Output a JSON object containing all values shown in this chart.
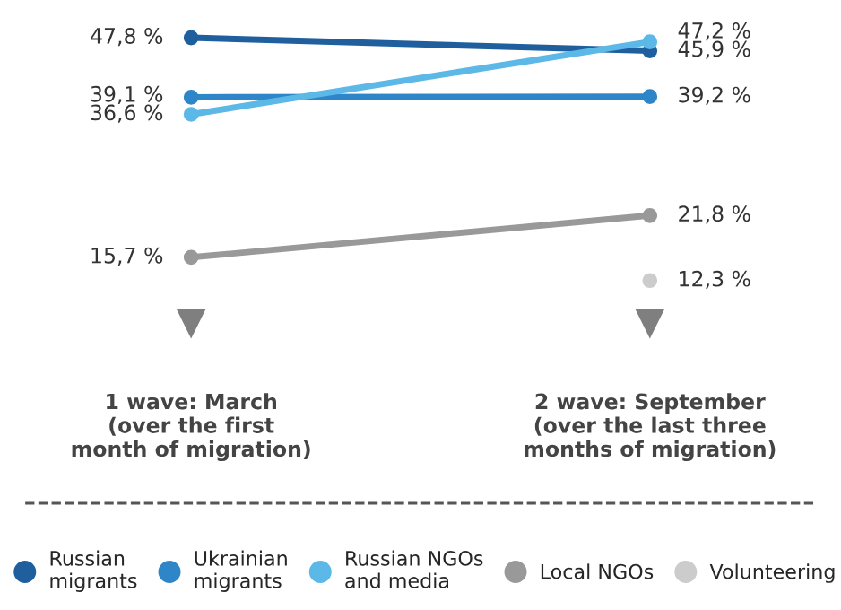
{
  "chart_data": {
    "type": "line",
    "categories": [
      "1 wave: March\n(over the first\nmonth of migration)",
      "2 wave: September\n(over the last three\nmonths of migration)"
    ],
    "series": [
      {
        "name": "Russian\nmigrants",
        "color": "#1f5f9e",
        "values": [
          47.8,
          45.9
        ],
        "value_labels": [
          "47,8 %",
          "45,9 %"
        ]
      },
      {
        "name": "Ukrainian\nmigrants",
        "color": "#2e86c8",
        "values": [
          39.1,
          39.2
        ],
        "value_labels": [
          "39,1 %",
          "39,2 %"
        ]
      },
      {
        "name": "Russian NGOs\nand media",
        "color": "#5cb8e6",
        "values": [
          36.6,
          47.2
        ],
        "value_labels": [
          "36,6 %",
          "47,2 %"
        ]
      },
      {
        "name": "Local NGOs",
        "color": "#999999",
        "values": [
          15.7,
          21.8
        ],
        "value_labels": [
          "15,7 %",
          "21,8 %"
        ]
      },
      {
        "name": "Volunteering",
        "color": "#cccccc",
        "values": [
          null,
          12.3
        ],
        "value_labels": [
          null,
          "12,3 %"
        ]
      }
    ],
    "marker": "circle",
    "line_style": "solid",
    "legend": "bottom",
    "grid": false,
    "tick_labels": "x"
  }
}
